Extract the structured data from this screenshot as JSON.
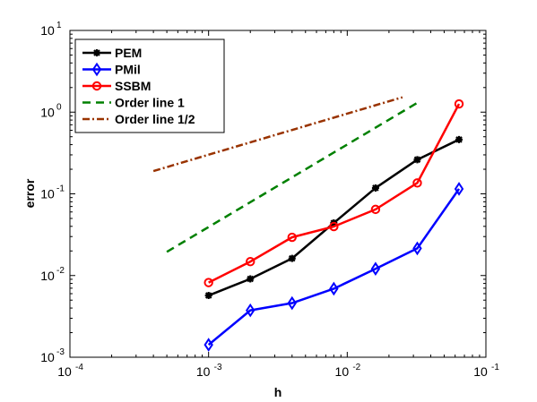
{
  "chart_data": {
    "type": "line",
    "xlabel": "h",
    "ylabel": "error",
    "xscale": "log",
    "yscale": "log",
    "xlim": [
      0.0001,
      0.1
    ],
    "ylim": [
      0.001,
      10
    ],
    "grid": false,
    "legend_position": "top-left",
    "x_ticks": [
      {
        "base": "10",
        "exp": "-4",
        "value": 0.0001
      },
      {
        "base": "10",
        "exp": "-3",
        "value": 0.001
      },
      {
        "base": "10",
        "exp": "-2",
        "value": 0.01
      },
      {
        "base": "10",
        "exp": "-1",
        "value": 0.1
      }
    ],
    "y_ticks": [
      {
        "base": "10",
        "exp": "-3",
        "value": 0.001
      },
      {
        "base": "10",
        "exp": "-2",
        "value": 0.01
      },
      {
        "base": "10",
        "exp": "-1",
        "value": 0.1
      },
      {
        "base": "10",
        "exp": "0",
        "value": 1
      },
      {
        "base": "10",
        "exp": "1",
        "value": 10
      }
    ],
    "series": [
      {
        "name": "PEM",
        "color": "#000000",
        "marker": "star",
        "dash": "solid",
        "x": [
          0.001,
          0.002,
          0.004,
          0.008,
          0.016,
          0.032,
          0.064
        ],
        "y": [
          0.0057,
          0.0091,
          0.0162,
          0.044,
          0.118,
          0.262,
          0.462
        ]
      },
      {
        "name": "PMil",
        "color": "#0000ff",
        "marker": "diamond",
        "dash": "solid",
        "x": [
          0.001,
          0.002,
          0.004,
          0.008,
          0.016,
          0.032,
          0.064
        ],
        "y": [
          0.00142,
          0.00375,
          0.0046,
          0.0069,
          0.0121,
          0.0215,
          0.115
        ]
      },
      {
        "name": "SSBM",
        "color": "#ff0000",
        "marker": "circle",
        "dash": "solid",
        "x": [
          0.001,
          0.002,
          0.004,
          0.008,
          0.016,
          0.032,
          0.064
        ],
        "y": [
          0.0082,
          0.0148,
          0.0294,
          0.0398,
          0.0645,
          0.136,
          1.26
        ]
      },
      {
        "name": "Order line 1",
        "color": "#008000",
        "marker": "none",
        "dash": "dash",
        "x": [
          0.0005,
          0.032
        ],
        "y": [
          0.0195,
          1.3
        ]
      },
      {
        "name": "Order line 1/2",
        "color": "#993300",
        "marker": "none",
        "dash": "dashdot",
        "x": [
          0.0004,
          0.025
        ],
        "y": [
          0.19,
          1.52
        ]
      }
    ]
  }
}
